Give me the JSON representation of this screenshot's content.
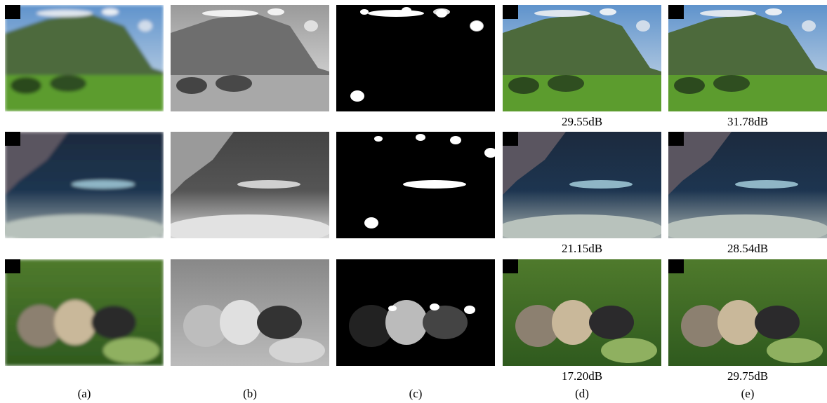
{
  "psnr": [
    [
      "29.55dB",
      "31.78dB"
    ],
    [
      "21.15dB",
      "28.54dB"
    ],
    [
      "17.20dB",
      "29.75dB"
    ]
  ],
  "captions": [
    "(a)",
    "(b)",
    "(c)",
    "(d)",
    "(e)"
  ]
}
